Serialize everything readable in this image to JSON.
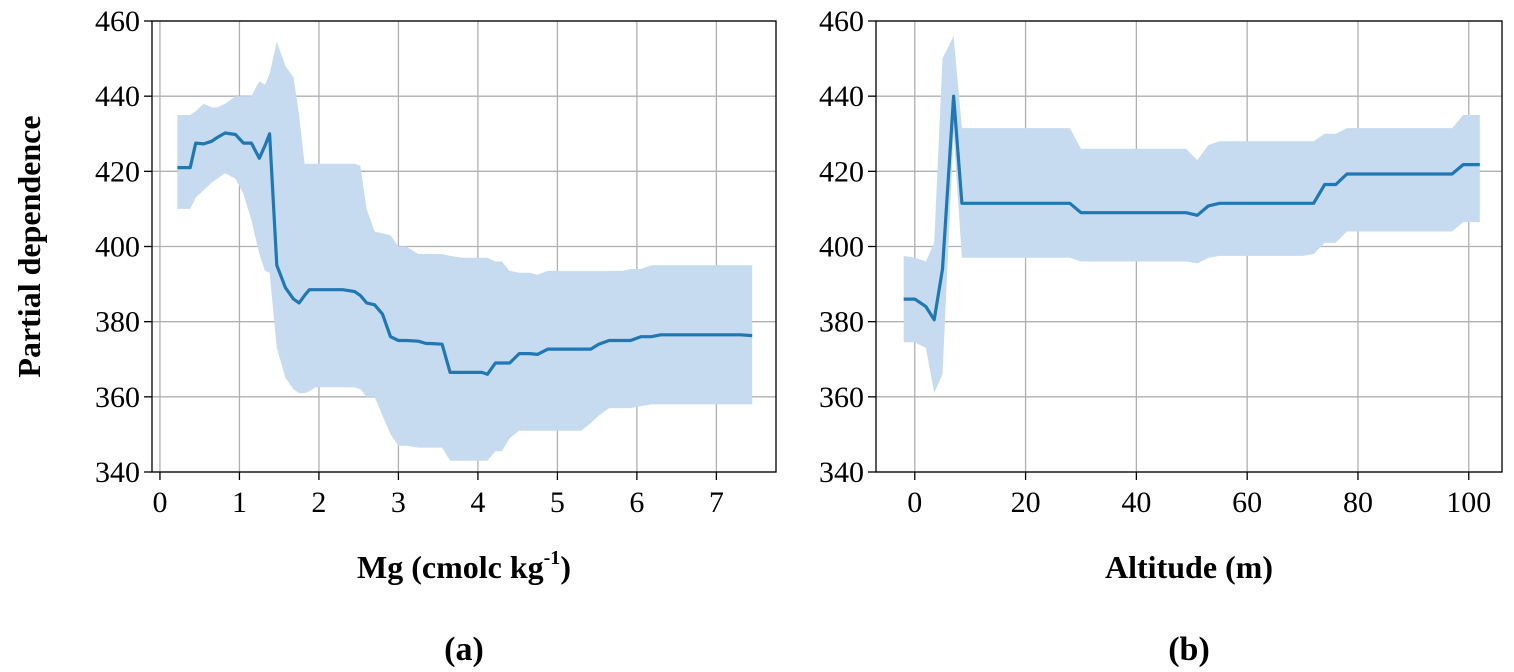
{
  "chart_data": [
    {
      "type": "line",
      "panel_label": "(a)",
      "xlabel": "Mg (cmolc kg",
      "xlabel_sup": "-1",
      "xlabel_end": ")",
      "ylabel": "Partial dependence",
      "xlim": [
        -0.1,
        7.75
      ],
      "ylim": [
        340,
        460
      ],
      "xticks": [
        0,
        1,
        2,
        3,
        4,
        5,
        6,
        7
      ],
      "yticks": [
        340,
        360,
        380,
        400,
        420,
        440,
        460
      ],
      "grid": true,
      "line_color": "#1f77b4",
      "band_color": "#c6dbef",
      "series": [
        {
          "x": [
            0.22,
            0.38,
            0.45,
            0.55,
            0.65,
            0.72,
            0.82,
            0.95,
            1.05,
            1.15,
            1.25,
            1.32,
            1.38,
            1.47,
            1.58,
            1.68,
            1.75,
            1.82,
            1.88,
            1.95,
            2.05,
            2.15,
            2.3,
            2.45,
            2.52,
            2.6,
            2.7,
            2.8,
            2.9,
            3.0,
            3.1,
            3.25,
            3.35,
            3.4,
            3.55,
            3.65,
            3.8,
            3.95,
            4.05,
            4.12,
            4.22,
            4.3,
            4.4,
            4.52,
            4.65,
            4.75,
            4.88,
            5.0,
            5.15,
            5.3,
            5.42,
            5.52,
            5.65,
            5.82,
            5.92,
            6.05,
            6.18,
            6.3,
            6.5,
            6.7,
            6.9,
            7.1,
            7.3,
            7.45
          ],
          "y": [
            421,
            421,
            427.5,
            427.3,
            428,
            429,
            430.2,
            429.8,
            427.5,
            427.5,
            423.5,
            426.8,
            430,
            395,
            389,
            386,
            385,
            387,
            388.5,
            388.5,
            388.5,
            388.5,
            388.5,
            388,
            387,
            385,
            384.5,
            382,
            376,
            375,
            375,
            374.8,
            374.2,
            374.2,
            374,
            366.5,
            366.5,
            366.5,
            366.5,
            366,
            369,
            369,
            369,
            371.5,
            371.5,
            371.3,
            372.7,
            372.7,
            372.7,
            372.7,
            372.7,
            374,
            375,
            375,
            375,
            376,
            376,
            376.5,
            376.5,
            376.5,
            376.5,
            376.5,
            376.5,
            376.3
          ],
          "upper": [
            435,
            435,
            436,
            438,
            437,
            437,
            438,
            440,
            440,
            440,
            444,
            443,
            446,
            454.5,
            448,
            445,
            435,
            422,
            422,
            422,
            422,
            422,
            422,
            422,
            421.5,
            410,
            404,
            403.5,
            403,
            400,
            400,
            398,
            398,
            398,
            398,
            397.5,
            397,
            397,
            397,
            397,
            396,
            396,
            393.5,
            393,
            393,
            392.5,
            393.5,
            393.5,
            393.5,
            393.5,
            393.5,
            393.5,
            393.5,
            393.5,
            394,
            394,
            395,
            395,
            395,
            395,
            395,
            395,
            395,
            395
          ],
          "lower": [
            410,
            410,
            413,
            415,
            417,
            418,
            419.5,
            418,
            414,
            407,
            398,
            393.5,
            393,
            373,
            365,
            362,
            361,
            361,
            361.5,
            362.5,
            362.5,
            362.5,
            362.5,
            362.5,
            362,
            360,
            360,
            355,
            350,
            347,
            347,
            346.5,
            346.5,
            346.5,
            346.5,
            343,
            343,
            343,
            343,
            343,
            345.5,
            345.5,
            349,
            351,
            351,
            351,
            351,
            351,
            351,
            351,
            353,
            355,
            357,
            357,
            357,
            357.5,
            358,
            358,
            358,
            358,
            358,
            358,
            358,
            358
          ]
        }
      ]
    },
    {
      "type": "line",
      "panel_label": "(b)",
      "xlabel": "Altitude (m)",
      "ylim": [
        340,
        460
      ],
      "xlim": [
        -7,
        106
      ],
      "xticks": [
        0,
        20,
        40,
        60,
        80,
        100
      ],
      "yticks": [
        340,
        360,
        380,
        400,
        420,
        440,
        460
      ],
      "grid": true,
      "line_color": "#1f77b4",
      "band_color": "#c6dbef",
      "series": [
        {
          "x": [
            -2,
            0,
            2,
            3.5,
            5,
            7,
            8.5,
            10,
            15,
            20,
            28,
            30,
            35,
            40,
            45,
            49,
            51,
            53,
            55,
            60,
            65,
            70,
            72,
            74,
            76,
            78,
            80,
            85,
            90,
            95,
            97,
            99,
            102
          ],
          "y": [
            386,
            386,
            384,
            380.5,
            394,
            440,
            411.5,
            411.5,
            411.5,
            411.5,
            411.5,
            409,
            409,
            409,
            409,
            409,
            408.3,
            410.8,
            411.5,
            411.5,
            411.5,
            411.5,
            411.5,
            416.5,
            416.5,
            419.3,
            419.3,
            419.3,
            419.3,
            419.3,
            419.3,
            421.8,
            421.8
          ],
          "upper": [
            397.5,
            397,
            396,
            401,
            450,
            456,
            431.5,
            431.5,
            431.5,
            431.5,
            431.5,
            426,
            426,
            426,
            426,
            426,
            423,
            427,
            428,
            428,
            428,
            428,
            428,
            430,
            430,
            431.5,
            431.5,
            431.5,
            431.5,
            431.5,
            431.5,
            435,
            435
          ],
          "lower": [
            374.5,
            374.5,
            373,
            361,
            366,
            430,
            397,
            397,
            397,
            397,
            397,
            396,
            396,
            396,
            396,
            396,
            395.5,
            397,
            397.5,
            397.5,
            397.5,
            397.5,
            398,
            401,
            401,
            404,
            404,
            404,
            404,
            404,
            404,
            406.5,
            406.5
          ]
        }
      ]
    }
  ]
}
